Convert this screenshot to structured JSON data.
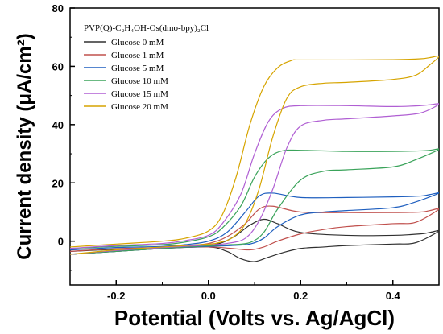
{
  "chart_data": {
    "type": "line",
    "xlabel": "Potential (Volts vs. Ag/AgCl)",
    "ylabel": "Current density (μA/cm²)",
    "xlim": [
      -0.3,
      0.5
    ],
    "ylim": [
      -15,
      80
    ],
    "xticks": [
      -0.2,
      0.0,
      0.2,
      0.4
    ],
    "xtick_labels": [
      "-0.2",
      "0.0",
      "0.2",
      "0.4"
    ],
    "yticks": [
      0,
      20,
      40,
      60,
      80
    ],
    "ytick_labels": [
      "0",
      "20",
      "40",
      "60",
      "80"
    ],
    "grid": false,
    "legend_position": "top-left",
    "legend_title": "PVP(Q)-C₂H₄OH-Os(dmo-bpy)₂Cl",
    "series": [
      {
        "name": "Glucose 0 mM",
        "color": "#303030",
        "x": [
          -0.3,
          -0.2,
          -0.1,
          -0.05,
          0.0,
          0.03,
          0.06,
          0.09,
          0.12,
          0.15,
          0.2,
          0.3,
          0.4,
          0.46,
          0.48,
          0.5,
          0.45,
          0.4,
          0.3,
          0.25,
          0.2,
          0.16,
          0.13,
          0.1,
          0.07,
          0.04,
          0.0,
          -0.1,
          -0.2,
          -0.3
        ],
        "y": [
          -3.5,
          -2.8,
          -2.4,
          -2.0,
          -1.5,
          -0.5,
          2.0,
          5.5,
          7.5,
          6.0,
          3.0,
          2.0,
          2.0,
          2.5,
          3.0,
          3.5,
          -0.5,
          -1.0,
          -1.5,
          -2.0,
          -2.5,
          -4.0,
          -5.5,
          -7.0,
          -6.0,
          -3.5,
          -2.0,
          -2.5,
          -3.5,
          -4.5
        ]
      },
      {
        "name": "Glucose 1 mM",
        "color": "#c0504d",
        "x": [
          -0.3,
          -0.2,
          -0.1,
          -0.05,
          0.0,
          0.04,
          0.08,
          0.11,
          0.14,
          0.2,
          0.3,
          0.4,
          0.46,
          0.48,
          0.5,
          0.45,
          0.4,
          0.3,
          0.25,
          0.2,
          0.15,
          0.12,
          0.09,
          0.05,
          0.0,
          -0.1,
          -0.2,
          -0.3
        ],
        "y": [
          -3.5,
          -2.6,
          -2.2,
          -1.6,
          -0.8,
          1.5,
          6.0,
          11.0,
          12.0,
          10.0,
          9.8,
          9.8,
          10.0,
          10.5,
          11.0,
          6.5,
          6.0,
          5.0,
          4.0,
          2.5,
          0.0,
          -2.0,
          -3.0,
          -2.5,
          -2.0,
          -2.5,
          -3.5,
          -4.5
        ]
      },
      {
        "name": "Glucose 5 mM",
        "color": "#1f5fbf",
        "x": [
          -0.3,
          -0.2,
          -0.1,
          -0.05,
          0.0,
          0.04,
          0.08,
          0.11,
          0.14,
          0.2,
          0.3,
          0.4,
          0.46,
          0.48,
          0.5,
          0.45,
          0.4,
          0.3,
          0.25,
          0.2,
          0.15,
          0.12,
          0.09,
          0.05,
          0.0,
          -0.1,
          -0.2,
          -0.3
        ],
        "y": [
          -3.0,
          -2.2,
          -1.8,
          -1.2,
          0.0,
          3.0,
          10.0,
          15.5,
          16.5,
          15.0,
          15.0,
          15.2,
          15.5,
          16.0,
          16.5,
          13.5,
          11.5,
          10.5,
          10.0,
          9.0,
          5.0,
          1.0,
          -1.0,
          -1.5,
          -1.8,
          -2.5,
          -3.5,
          -4.5
        ]
      },
      {
        "name": "Glucose 10 mM",
        "color": "#3aa35a",
        "x": [
          -0.3,
          -0.2,
          -0.1,
          -0.05,
          0.0,
          0.03,
          0.07,
          0.1,
          0.13,
          0.16,
          0.2,
          0.3,
          0.4,
          0.46,
          0.48,
          0.5,
          0.45,
          0.4,
          0.3,
          0.25,
          0.2,
          0.15,
          0.12,
          0.09,
          0.05,
          0.0,
          -0.1,
          -0.2,
          -0.3
        ],
        "y": [
          -2.5,
          -1.8,
          -1.2,
          -0.3,
          1.5,
          4.5,
          12.0,
          22.0,
          28.5,
          31.0,
          31.2,
          30.8,
          30.8,
          31.0,
          31.2,
          31.5,
          28.0,
          25.5,
          24.5,
          24.0,
          21.0,
          11.0,
          3.0,
          -0.5,
          -1.2,
          -1.6,
          -2.5,
          -3.5,
          -4.5
        ]
      },
      {
        "name": "Glucose 15 mM",
        "color": "#b05fd3",
        "x": [
          -0.3,
          -0.2,
          -0.1,
          -0.05,
          0.0,
          0.03,
          0.07,
          0.1,
          0.13,
          0.16,
          0.2,
          0.3,
          0.4,
          0.46,
          0.48,
          0.5,
          0.46,
          0.4,
          0.3,
          0.25,
          0.2,
          0.17,
          0.14,
          0.11,
          0.08,
          0.04,
          0.0,
          -0.1,
          -0.2,
          -0.3
        ],
        "y": [
          -2.5,
          -1.5,
          -0.8,
          0.2,
          2.0,
          6.0,
          16.0,
          30.0,
          41.0,
          45.5,
          46.5,
          46.5,
          46.2,
          46.5,
          46.8,
          47.0,
          44.0,
          43.0,
          42.0,
          41.5,
          39.5,
          32.0,
          18.0,
          7.0,
          1.0,
          -0.8,
          -1.3,
          -2.2,
          -3.2,
          -4.5
        ]
      },
      {
        "name": "Glucose 20 mM",
        "color": "#d6a400",
        "x": [
          -0.3,
          -0.2,
          -0.1,
          -0.05,
          0.0,
          0.03,
          0.06,
          0.09,
          0.12,
          0.15,
          0.18,
          0.2,
          0.3,
          0.4,
          0.46,
          0.48,
          0.5,
          0.48,
          0.45,
          0.4,
          0.3,
          0.25,
          0.2,
          0.17,
          0.14,
          0.11,
          0.08,
          0.05,
          0.02,
          0.0,
          -0.1,
          -0.2,
          -0.3
        ],
        "y": [
          -2.0,
          -1.0,
          0.0,
          1.0,
          3.5,
          9.0,
          22.0,
          40.0,
          53.0,
          59.5,
          62.0,
          62.2,
          62.2,
          62.3,
          62.6,
          63.0,
          63.4,
          60.5,
          57.0,
          55.5,
          54.5,
          54.2,
          53.0,
          49.0,
          36.0,
          18.0,
          6.0,
          1.0,
          -0.6,
          -1.0,
          -2.0,
          -3.0,
          -4.5
        ]
      }
    ]
  }
}
